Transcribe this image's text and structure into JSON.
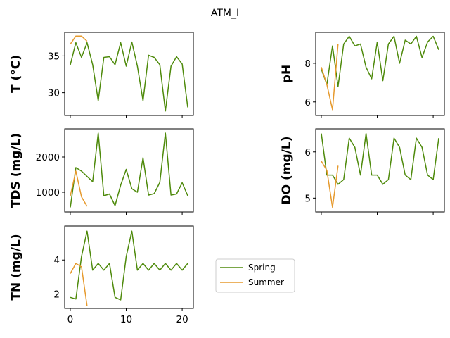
{
  "figure": {
    "title": "ATM_I"
  },
  "colors": {
    "Spring": "#4e8a0b",
    "Summer": "#e69a2e"
  },
  "legend": {
    "placement": "right of bottom-left panel",
    "entries": [
      "Spring",
      "Summer"
    ]
  },
  "chart_data": [
    {
      "type": "line",
      "panel": "T",
      "ylabel": "T  (°C)",
      "xlim": [
        -1,
        22
      ],
      "ylim": [
        26.9,
        38.2
      ],
      "xticks": [
        0,
        10,
        20
      ],
      "yticks": [
        30,
        35
      ],
      "show_xtick_labels": false,
      "series": [
        {
          "name": "Spring",
          "x": [
            0,
            1,
            2,
            3,
            4,
            5,
            6,
            7,
            8,
            9,
            10,
            11,
            12,
            13,
            14,
            15,
            16,
            17,
            18,
            19,
            20,
            21
          ],
          "y": [
            33.8,
            36.8,
            34.8,
            36.8,
            33.8,
            28.9,
            34.8,
            34.9,
            33.8,
            36.8,
            33.6,
            36.9,
            33.6,
            28.9,
            35.1,
            34.8,
            33.8,
            27.5,
            33.6,
            34.9,
            33.9,
            28.0
          ]
        },
        {
          "name": "Summer",
          "x": [
            0,
            1,
            2,
            3
          ],
          "y": [
            36.6,
            37.7,
            37.7,
            37.0
          ]
        }
      ]
    },
    {
      "type": "line",
      "panel": "pH",
      "ylabel": "pH",
      "xlim": [
        -1,
        22
      ],
      "ylim": [
        5.3,
        9.6
      ],
      "xticks": [
        0,
        10,
        20
      ],
      "yticks": [
        6,
        8
      ],
      "show_xtick_labels": false,
      "series": [
        {
          "name": "Spring",
          "x": [
            0,
            1,
            2,
            3,
            4,
            5,
            6,
            7,
            8,
            9,
            10,
            11,
            12,
            13,
            14,
            15,
            16,
            17,
            18,
            19,
            20,
            21
          ],
          "y": [
            7.7,
            6.9,
            8.9,
            6.8,
            9.0,
            9.4,
            8.9,
            9.0,
            7.8,
            7.2,
            9.1,
            7.1,
            9.0,
            9.4,
            8.0,
            9.2,
            9.0,
            9.4,
            8.3,
            9.1,
            9.4,
            8.7
          ]
        },
        {
          "name": "Summer",
          "x": [
            0,
            1,
            2,
            3
          ],
          "y": [
            7.8,
            6.9,
            5.6,
            9.0
          ]
        }
      ]
    },
    {
      "type": "line",
      "panel": "TDS",
      "ylabel": "TDS (mg/L)",
      "xlim": [
        -1,
        22
      ],
      "ylim": [
        440,
        2800
      ],
      "xticks": [
        0,
        10,
        20
      ],
      "yticks": [
        1000,
        2000
      ],
      "show_xtick_labels": false,
      "series": [
        {
          "name": "Spring",
          "x": [
            0,
            1,
            2,
            3,
            4,
            5,
            6,
            7,
            8,
            9,
            10,
            11,
            12,
            13,
            14,
            15,
            16,
            17,
            18,
            19,
            20,
            21
          ],
          "y": [
            570,
            1700,
            1600,
            1450,
            1300,
            2680,
            900,
            950,
            620,
            1200,
            1650,
            1100,
            1000,
            1980,
            920,
            960,
            1280,
            2680,
            920,
            950,
            1270,
            900
          ]
        },
        {
          "name": "Summer",
          "x": [
            0,
            1,
            2,
            3
          ],
          "y": [
            900,
            1600,
            870,
            600
          ]
        }
      ]
    },
    {
      "type": "line",
      "panel": "DO",
      "ylabel": "DO (mg/L)",
      "xlim": [
        -1,
        22
      ],
      "ylim": [
        4.7,
        6.5
      ],
      "xticks": [
        0,
        10,
        20
      ],
      "yticks": [
        5,
        6
      ],
      "show_xtick_labels": false,
      "series": [
        {
          "name": "Spring",
          "x": [
            0,
            1,
            2,
            3,
            4,
            5,
            6,
            7,
            8,
            9,
            10,
            11,
            12,
            13,
            14,
            15,
            16,
            17,
            18,
            19,
            20,
            21
          ],
          "y": [
            6.4,
            5.5,
            5.5,
            5.3,
            5.4,
            6.3,
            6.1,
            5.5,
            6.4,
            5.5,
            5.5,
            5.3,
            5.4,
            6.3,
            6.1,
            5.5,
            5.4,
            6.3,
            6.1,
            5.5,
            5.4,
            6.3
          ]
        },
        {
          "name": "Summer",
          "x": [
            0,
            1,
            2,
            3
          ],
          "y": [
            5.8,
            5.6,
            4.8,
            5.7
          ]
        }
      ]
    },
    {
      "type": "line",
      "panel": "TN",
      "ylabel": "TN (mg/L)",
      "xlim": [
        -1,
        22
      ],
      "ylim": [
        1.15,
        6.0
      ],
      "xticks": [
        0,
        10,
        20
      ],
      "yticks": [
        2,
        4
      ],
      "show_xtick_labels": true,
      "series": [
        {
          "name": "Spring",
          "x": [
            0,
            1,
            2,
            3,
            4,
            5,
            6,
            7,
            8,
            9,
            10,
            11,
            12,
            13,
            14,
            15,
            16,
            17,
            18,
            19,
            20,
            21
          ],
          "y": [
            1.8,
            1.7,
            4.2,
            5.7,
            3.4,
            3.8,
            3.4,
            3.8,
            1.8,
            1.65,
            4.2,
            5.7,
            3.4,
            3.8,
            3.4,
            3.8,
            3.4,
            3.8,
            3.4,
            3.8,
            3.4,
            3.8
          ]
        },
        {
          "name": "Summer",
          "x": [
            0,
            1,
            2,
            3
          ],
          "y": [
            3.2,
            3.8,
            3.6,
            1.3
          ]
        }
      ]
    }
  ]
}
